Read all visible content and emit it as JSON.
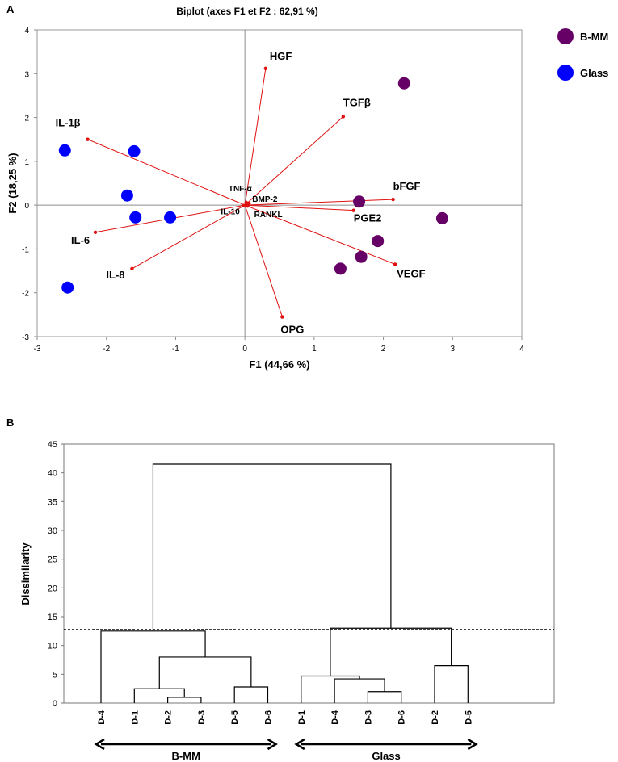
{
  "panels": {
    "a_label": "A",
    "b_label": "B"
  },
  "chart_data": [
    {
      "type": "scatter",
      "subtype": "biplot",
      "title": "Biplot (axes F1 et F2 : 62,91 %)",
      "xlabel": "F1 (44,66 %)",
      "ylabel": "F2 (18,25 %)",
      "xlim": [
        -3,
        4
      ],
      "ylim": [
        -3,
        4
      ],
      "xticks": [
        -3,
        -2,
        -1,
        0,
        1,
        2,
        3,
        4
      ],
      "yticks": [
        -3,
        -2,
        -1,
        0,
        1,
        2,
        3,
        4
      ],
      "legend": [
        {
          "name": "B-MM",
          "color": "#660066"
        },
        {
          "name": "Glass",
          "color": "#0000ff"
        }
      ],
      "series": [
        {
          "name": "B-MM",
          "color": "#660066",
          "points": [
            [
              2.3,
              2.78
            ],
            [
              1.65,
              0.08
            ],
            [
              2.85,
              -0.3
            ],
            [
              1.92,
              -0.82
            ],
            [
              1.68,
              -1.18
            ],
            [
              1.38,
              -1.45
            ]
          ]
        },
        {
          "name": "Glass",
          "color": "#0000ff",
          "points": [
            [
              -2.6,
              1.25
            ],
            [
              -1.6,
              1.23
            ],
            [
              -1.7,
              0.22
            ],
            [
              -1.58,
              -0.28
            ],
            [
              -1.08,
              -0.28
            ],
            [
              -2.56,
              -1.88
            ]
          ]
        }
      ],
      "vectors": [
        {
          "label": "HGF",
          "x": 0.3,
          "y": 3.12
        },
        {
          "label": "TGFβ",
          "x": 1.42,
          "y": 2.02
        },
        {
          "label": "IL-1β",
          "x": -2.27,
          "y": 1.5
        },
        {
          "label": "bFGF",
          "x": 2.14,
          "y": 0.13
        },
        {
          "label": "PGE2",
          "x": 1.57,
          "y": -0.12
        },
        {
          "label": "VEGF",
          "x": 2.17,
          "y": -1.35
        },
        {
          "label": "OPG",
          "x": 0.54,
          "y": -2.55
        },
        {
          "label": "IL-6",
          "x": -2.16,
          "y": -0.62
        },
        {
          "label": "IL-8",
          "x": -1.63,
          "y": -1.45
        },
        {
          "label": "TNF-α",
          "x": 0.02,
          "y": 0.06
        },
        {
          "label": "BMP-2",
          "x": 0.06,
          "y": 0.04
        },
        {
          "label": "IL-10",
          "x": -0.02,
          "y": -0.01
        },
        {
          "label": "RANKL",
          "x": 0.04,
          "y": -0.02
        }
      ]
    },
    {
      "type": "dendrogram",
      "ylabel": "Dissimilarity",
      "ylim": [
        0,
        45
      ],
      "yticks": [
        0,
        5,
        10,
        15,
        20,
        25,
        30,
        35,
        40,
        45
      ],
      "cut_height": 12.8,
      "leaves": [
        "D-4",
        "D-1",
        "D-2",
        "D-3",
        "D-5",
        "D-6",
        "D-1",
        "D-4",
        "D-3",
        "D-6",
        "D-2",
        "D-5"
      ],
      "merges": [
        {
          "left": [
            3,
            0
          ],
          "right": [
            4,
            0
          ],
          "height": 1.0,
          "result": 3.5
        },
        {
          "left": [
            2,
            0
          ],
          "right": [
            3.5,
            1.0
          ],
          "height": 2.5,
          "result": 2.75
        },
        {
          "left": [
            5,
            0
          ],
          "right": [
            6,
            0
          ],
          "height": 2.8,
          "result": 5.5
        },
        {
          "left": [
            2.75,
            2.5
          ],
          "right": [
            5.5,
            2.8
          ],
          "height": 8.0,
          "result": 4.125
        },
        {
          "left": [
            1,
            0
          ],
          "right": [
            4.125,
            8.0
          ],
          "height": 12.5,
          "result": 2.56
        },
        {
          "left": [
            9,
            0
          ],
          "right": [
            10,
            0
          ],
          "height": 2.0,
          "result": 9.5
        },
        {
          "left": [
            8,
            0
          ],
          "right": [
            9.5,
            2.0
          ],
          "height": 4.2,
          "result": 8.75
        },
        {
          "left": [
            7,
            0
          ],
          "right": [
            8.75,
            4.2
          ],
          "height": 4.7,
          "result": 7.875
        },
        {
          "left": [
            11,
            0
          ],
          "right": [
            12,
            0
          ],
          "height": 6.5,
          "result": 11.5
        },
        {
          "left": [
            7.875,
            4.7
          ],
          "right": [
            11.5,
            6.5
          ],
          "height": 13.0,
          "result": 9.69
        },
        {
          "left": [
            2.56,
            12.5
          ],
          "right": [
            9.69,
            13.0
          ],
          "height": 41.5,
          "result": 6.1
        }
      ],
      "groups": [
        {
          "name": "B-MM",
          "from_leaf": 1,
          "to_leaf": 6
        },
        {
          "name": "Glass",
          "from_leaf": 7,
          "to_leaf": 12
        }
      ]
    }
  ]
}
